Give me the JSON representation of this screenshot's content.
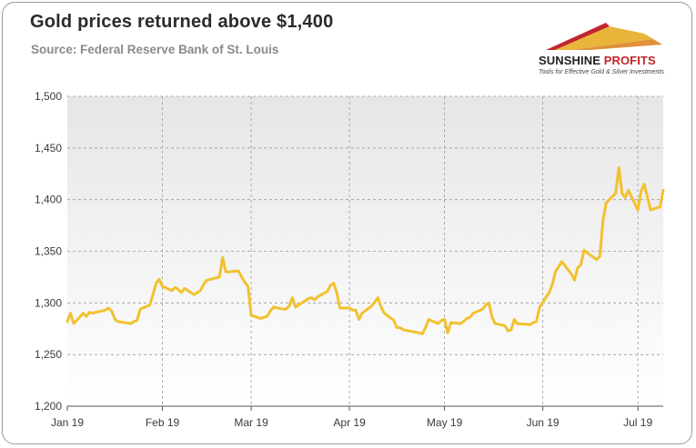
{
  "header": {
    "title": "Gold prices returned above $1,400",
    "subtitle": "Source: Federal Reserve Bank of St. Louis"
  },
  "logo": {
    "name_part1": "SUNSHINE",
    "name_part2": " PROFITS",
    "tagline": "Tools for Effective Gold & Silver Investments",
    "colors": [
      "#c2252c",
      "#e8b43a",
      "#e0913a"
    ]
  },
  "chart_data": {
    "type": "line",
    "title": "Gold prices returned above $1,400",
    "xlabel": "",
    "ylabel": "",
    "ylim": [
      1200,
      1500
    ],
    "yticks": [
      1200,
      1250,
      1300,
      1350,
      1400,
      1450,
      1500
    ],
    "ytick_labels": [
      "1,200",
      "1,250",
      "1,300",
      "1,350",
      "1,400",
      "1,450",
      "1,500"
    ],
    "xticks": [
      "Jan 19",
      "Feb 19",
      "Mar 19",
      "Apr 19",
      "May 19",
      "Jun 19",
      "Jul 19"
    ],
    "x_range": [
      "2019-01-02",
      "2019-07-09"
    ],
    "grid": true,
    "line_color": "#f2c12e",
    "series": [
      {
        "x": [
          "2019-01-02",
          "2019-01-03",
          "2019-01-04",
          "2019-01-07",
          "2019-01-08",
          "2019-01-09",
          "2019-01-10",
          "2019-01-11",
          "2019-01-14",
          "2019-01-15",
          "2019-01-16",
          "2019-01-17",
          "2019-01-18",
          "2019-01-22",
          "2019-01-23",
          "2019-01-24",
          "2019-01-25",
          "2019-01-28",
          "2019-01-29",
          "2019-01-30",
          "2019-01-31",
          "2019-02-01",
          "2019-02-04",
          "2019-02-05",
          "2019-02-06",
          "2019-02-07",
          "2019-02-08",
          "2019-02-11",
          "2019-02-12",
          "2019-02-13",
          "2019-02-14",
          "2019-02-15",
          "2019-02-19",
          "2019-02-20",
          "2019-02-21",
          "2019-02-22",
          "2019-02-25",
          "2019-02-26",
          "2019-02-27",
          "2019-02-28",
          "2019-03-01",
          "2019-03-04",
          "2019-03-05",
          "2019-03-06",
          "2019-03-07",
          "2019-03-08",
          "2019-03-11",
          "2019-03-12",
          "2019-03-13",
          "2019-03-14",
          "2019-03-15",
          "2019-03-18",
          "2019-03-19",
          "2019-03-20",
          "2019-03-21",
          "2019-03-22",
          "2019-03-25",
          "2019-03-26",
          "2019-03-27",
          "2019-03-28",
          "2019-03-29",
          "2019-04-01",
          "2019-04-02",
          "2019-04-03",
          "2019-04-04",
          "2019-04-05",
          "2019-04-08",
          "2019-04-09",
          "2019-04-10",
          "2019-04-11",
          "2019-04-12",
          "2019-04-15",
          "2019-04-16",
          "2019-04-17",
          "2019-04-18",
          "2019-04-23",
          "2019-04-24",
          "2019-04-25",
          "2019-04-26",
          "2019-04-29",
          "2019-04-30",
          "2019-05-01",
          "2019-05-02",
          "2019-05-03",
          "2019-05-06",
          "2019-05-07",
          "2019-05-08",
          "2019-05-09",
          "2019-05-10",
          "2019-05-13",
          "2019-05-14",
          "2019-05-15",
          "2019-05-16",
          "2019-05-17",
          "2019-05-20",
          "2019-05-21",
          "2019-05-22",
          "2019-05-23",
          "2019-05-24",
          "2019-05-28",
          "2019-05-29",
          "2019-05-30",
          "2019-05-31",
          "2019-06-03",
          "2019-06-04",
          "2019-06-05",
          "2019-06-06",
          "2019-06-07",
          "2019-06-10",
          "2019-06-11",
          "2019-06-12",
          "2019-06-13",
          "2019-06-14",
          "2019-06-17",
          "2019-06-18",
          "2019-06-19",
          "2019-06-20",
          "2019-06-21",
          "2019-06-24",
          "2019-06-25",
          "2019-06-26",
          "2019-06-27",
          "2019-06-28",
          "2019-07-01",
          "2019-07-02",
          "2019-07-03",
          "2019-07-05",
          "2019-07-08",
          "2019-07-09"
        ],
        "values": [
          1282,
          1290,
          1280,
          1290,
          1287,
          1291,
          1290,
          1291,
          1293,
          1295,
          1292,
          1284,
          1282,
          1280,
          1282,
          1283,
          1294,
          1298,
          1308,
          1319,
          1323,
          1316,
          1312,
          1315,
          1313,
          1310,
          1314,
          1308,
          1310,
          1312,
          1318,
          1322,
          1325,
          1344,
          1330,
          1330,
          1331,
          1325,
          1320,
          1316,
          1288,
          1285,
          1286,
          1287,
          1292,
          1296,
          1294,
          1294,
          1297,
          1305,
          1296,
          1302,
          1304,
          1305,
          1303,
          1306,
          1311,
          1317,
          1319,
          1310,
          1295,
          1295,
          1293,
          1293,
          1284,
          1290,
          1297,
          1301,
          1305,
          1296,
          1290,
          1283,
          1276,
          1276,
          1274,
          1271,
          1270,
          1276,
          1284,
          1280,
          1283,
          1284,
          1271,
          1281,
          1280,
          1282,
          1285,
          1286,
          1290,
          1294,
          1298,
          1300,
          1286,
          1280,
          1278,
          1273,
          1274,
          1284,
          1280,
          1279,
          1281,
          1282,
          1296,
          1310,
          1318,
          1330,
          1335,
          1340,
          1328,
          1322,
          1334,
          1337,
          1351,
          1344,
          1342,
          1345,
          1380,
          1397,
          1406,
          1431,
          1406,
          1402,
          1409,
          1390,
          1408,
          1415,
          1390,
          1393,
          1409
        ]
      }
    ]
  }
}
